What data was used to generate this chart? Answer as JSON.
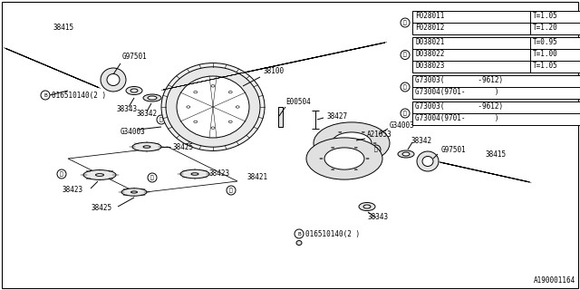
{
  "bg_color": "#ffffff",
  "border_color": "#000000",
  "part_number": "A190001164",
  "lc": "#000000",
  "lw": 0.7,
  "fs": 5.5,
  "legend": {
    "box1": {
      "rows": [
        [
          "F028011",
          "T=1.05"
        ],
        [
          "F028012",
          "T=1.20"
        ]
      ],
      "circle": "1"
    },
    "box2": {
      "rows": [
        [
          "D038021",
          "T=0.95"
        ],
        [
          "D038022",
          "T=1.00"
        ],
        [
          "D038023",
          "T=1.05"
        ]
      ],
      "circle": "2"
    },
    "box3": {
      "rows": [
        [
          "G73003(",
          "     -9612)"
        ],
        [
          "G73004(9701-",
          "      )"
        ]
      ],
      "circle": "3"
    },
    "box4": {
      "rows": [
        [
          "G73003(",
          "     -9612)"
        ],
        [
          "G73004(9701-",
          "      )"
        ]
      ],
      "circle": "4"
    }
  }
}
